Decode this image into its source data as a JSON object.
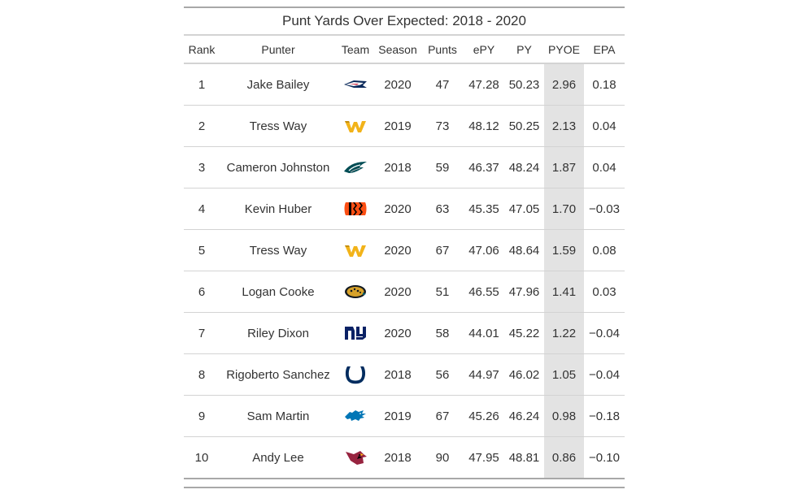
{
  "title": "Punt Yards Over Expected: 2018 - 2020",
  "columns": [
    "Rank",
    "Punter",
    "Team",
    "Season",
    "Punts",
    "ePY",
    "PY",
    "PYOE",
    "EPA"
  ],
  "colors": {
    "highlight_column": "#e3e3e3",
    "rule_dark": "#a8a8a8",
    "rule_light": "#d3d3d3",
    "text": "#333333"
  },
  "chart_data": {
    "type": "table",
    "title": "Punt Yards Over Expected: 2018 - 2020",
    "columns": [
      "Rank",
      "Punter",
      "Team",
      "Season",
      "Punts",
      "ePY",
      "PY",
      "PYOE",
      "EPA"
    ],
    "highlighted_column": "PYOE",
    "rows": [
      {
        "rank": "1",
        "punter": "Jake Bailey",
        "team_logo": "patriots-logo-icon",
        "season": "2020",
        "punts": "47",
        "epy": "47.28",
        "py": "50.23",
        "pyoe": "2.96",
        "epa": "0.18"
      },
      {
        "rank": "2",
        "punter": "Tress Way",
        "team_logo": "washington-logo-icon",
        "season": "2019",
        "punts": "73",
        "epy": "48.12",
        "py": "50.25",
        "pyoe": "2.13",
        "epa": "0.04"
      },
      {
        "rank": "3",
        "punter": "Cameron Johnston",
        "team_logo": "eagles-logo-icon",
        "season": "2018",
        "punts": "59",
        "epy": "46.37",
        "py": "48.24",
        "pyoe": "1.87",
        "epa": "0.04"
      },
      {
        "rank": "4",
        "punter": "Kevin Huber",
        "team_logo": "bengals-logo-icon",
        "season": "2020",
        "punts": "63",
        "epy": "45.35",
        "py": "47.05",
        "pyoe": "1.70",
        "epa": "−0.03"
      },
      {
        "rank": "5",
        "punter": "Tress Way",
        "team_logo": "washington-logo-icon",
        "season": "2020",
        "punts": "67",
        "epy": "47.06",
        "py": "48.64",
        "pyoe": "1.59",
        "epa": "0.08"
      },
      {
        "rank": "6",
        "punter": "Logan Cooke",
        "team_logo": "jaguars-logo-icon",
        "season": "2020",
        "punts": "51",
        "epy": "46.55",
        "py": "47.96",
        "pyoe": "1.41",
        "epa": "0.03"
      },
      {
        "rank": "7",
        "punter": "Riley Dixon",
        "team_logo": "giants-logo-icon",
        "season": "2020",
        "punts": "58",
        "epy": "44.01",
        "py": "45.22",
        "pyoe": "1.22",
        "epa": "−0.04"
      },
      {
        "rank": "8",
        "punter": "Rigoberto Sanchez",
        "team_logo": "colts-logo-icon",
        "season": "2018",
        "punts": "56",
        "epy": "44.97",
        "py": "46.02",
        "pyoe": "1.05",
        "epa": "−0.04"
      },
      {
        "rank": "9",
        "punter": "Sam Martin",
        "team_logo": "lions-logo-icon",
        "season": "2019",
        "punts": "67",
        "epy": "45.26",
        "py": "46.24",
        "pyoe": "0.98",
        "epa": "−0.18"
      },
      {
        "rank": "10",
        "punter": "Andy Lee",
        "team_logo": "cardinals-logo-icon",
        "season": "2018",
        "punts": "90",
        "epy": "47.95",
        "py": "48.81",
        "pyoe": "0.86",
        "epa": "−0.10"
      }
    ]
  }
}
